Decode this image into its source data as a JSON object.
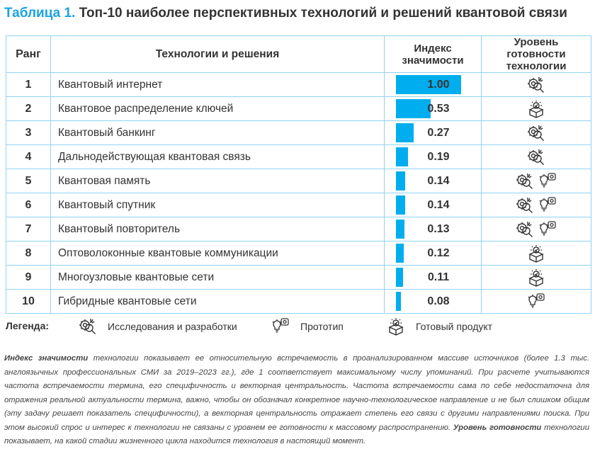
{
  "title": {
    "number": "Таблица 1.",
    "text": "Топ-10 наиболее перспективных технологий и решений квантовой связи"
  },
  "headers": {
    "rank": "Ранг",
    "tech": "Технологии и решения",
    "index": "Индекс значимости",
    "readiness": "Уровень готовности технологии"
  },
  "accent_color": "#00aeef",
  "rows": [
    {
      "rank": "1",
      "name": "Квантовый интернет",
      "index": 1.0,
      "index_label": "1.00",
      "readiness": [
        "research"
      ]
    },
    {
      "rank": "2",
      "name": "Квантовое распределение ключей",
      "index": 0.53,
      "index_label": "0.53",
      "readiness": [
        "product"
      ]
    },
    {
      "rank": "3",
      "name": "Квантовый банкинг",
      "index": 0.27,
      "index_label": "0.27",
      "readiness": [
        "research"
      ]
    },
    {
      "rank": "4",
      "name": "Дальнодействующая квантовая связь",
      "index": 0.19,
      "index_label": "0.19",
      "readiness": [
        "research"
      ]
    },
    {
      "rank": "5",
      "name": "Квантовая память",
      "index": 0.14,
      "index_label": "0.14",
      "readiness": [
        "research",
        "prototype"
      ]
    },
    {
      "rank": "6",
      "name": "Квантовый спутник",
      "index": 0.14,
      "index_label": "0.14",
      "readiness": [
        "research",
        "prototype"
      ]
    },
    {
      "rank": "7",
      "name": "Квантовый повторитель",
      "index": 0.13,
      "index_label": "0.13",
      "readiness": [
        "research",
        "prototype"
      ]
    },
    {
      "rank": "8",
      "name": "Оптоволоконные квантовые коммуникации",
      "index": 0.12,
      "index_label": "0.12",
      "readiness": [
        "product"
      ]
    },
    {
      "rank": "9",
      "name": "Многоузловые квантовые сети",
      "index": 0.11,
      "index_label": "0.11",
      "readiness": [
        "product"
      ]
    },
    {
      "rank": "10",
      "name": "Гибридные квантовые сети",
      "index": 0.08,
      "index_label": "0.08",
      "readiness": [
        "prototype"
      ]
    }
  ],
  "legend": {
    "label": "Легенда:",
    "research": "Исследования и разработки",
    "prototype": "Прототип",
    "product": "Готовый продукт"
  },
  "note": {
    "b1": "Индекс значимости",
    "t1": " технологии показывает ее относительную встречаемость в проанализированном массиве источников (более 1.3 тыс. англоязычных профессиональных СМИ за 2019–2023 гг.), где 1 соответствует максимальному числу упоминаний. При расчете учитываются частота встречаемости термина, его специфичность и векторная центральность. Частота встречаемости сама по себе недостаточна для отражения реальной актуальности термина, важно, чтобы он обозначал конкретное научно-технологическое направление и не был слишком общим (эту задачу решает показатель специфичности), а векторная центральность отражает степень его связи с другими направлениями поиска. При этом высокий спрос и интерес к технологии не связаны с уровнем ее готовности к массовому распространению. ",
    "b2": "Уровень готовности",
    "t2": " технологии показывает, на какой стадии жизненного цикла находится технология в настоящий момент."
  }
}
